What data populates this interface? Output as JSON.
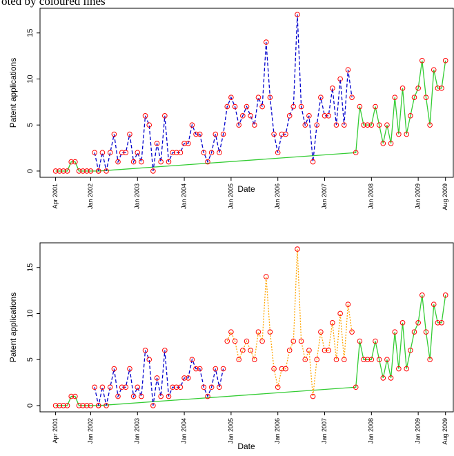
{
  "caption": "oted by coloured lines",
  "chart_data": [
    {
      "type": "line",
      "xlabel": "Date",
      "ylabel": "Patent applications",
      "xlim": [
        "2000-12",
        "2009-10"
      ],
      "ylim": [
        -0.68,
        17.68
      ],
      "yticks": [
        0,
        5,
        10,
        15
      ],
      "xticks": [
        {
          "value": "2001-04",
          "label": "Apr 2001"
        },
        {
          "value": "2002-01",
          "label": "Jan 2002"
        },
        {
          "value": "2003-01",
          "label": "Jan 2003"
        },
        {
          "value": "2004-01",
          "label": "Jan 2004"
        },
        {
          "value": "2005-01",
          "label": "Jan 2005"
        },
        {
          "value": "2006-01",
          "label": "Jan 2006"
        },
        {
          "value": "2007-01",
          "label": "Jan 2007"
        },
        {
          "value": "2008-01",
          "label": "Jan 2008"
        },
        {
          "value": "2009-01",
          "label": "Jan 2009"
        },
        {
          "value": "2009-08",
          "label": "Aug 2009"
        }
      ],
      "point_color": "#ff0000",
      "series": [
        {
          "color": "#33cc33",
          "style": "solid",
          "x": [
            "2001-04",
            "2001-05",
            "2001-06",
            "2001-07",
            "2001-08",
            "2001-09",
            "2001-10",
            "2001-11",
            "2001-12",
            "2002-01",
            "2002-03",
            "2007-09",
            "2007-10",
            "2007-11",
            "2007-12",
            "2008-01",
            "2008-02",
            "2008-03",
            "2008-04",
            "2008-05",
            "2008-06",
            "2008-07",
            "2008-08",
            "2008-09",
            "2008-10",
            "2008-11",
            "2008-12",
            "2009-01",
            "2009-02",
            "2009-03",
            "2009-04",
            "2009-05",
            "2009-06",
            "2009-07",
            "2009-08"
          ],
          "values": [
            0,
            0,
            0,
            0,
            1,
            1,
            0,
            0,
            0,
            0,
            0,
            2,
            7,
            5,
            5,
            5,
            7,
            5,
            3,
            5,
            3,
            8,
            4,
            9,
            4,
            6,
            8,
            9,
            12,
            8,
            5,
            11,
            9,
            9,
            12
          ]
        },
        {
          "color": "#0000cc",
          "style": "dashed",
          "x": [
            "2002-02",
            "2002-03",
            "2002-04",
            "2002-05",
            "2002-06",
            "2002-07",
            "2002-08",
            "2002-09",
            "2002-10",
            "2002-11",
            "2002-12",
            "2003-01",
            "2003-02",
            "2003-03",
            "2003-04",
            "2003-05",
            "2003-06",
            "2003-07",
            "2003-08",
            "2003-09",
            "2003-10",
            "2003-11",
            "2003-12",
            "2004-01",
            "2004-02",
            "2004-03",
            "2004-04",
            "2004-05",
            "2004-06",
            "2004-07",
            "2004-08",
            "2004-09",
            "2004-10",
            "2004-11",
            "2004-12",
            "2005-01",
            "2005-02",
            "2005-03",
            "2005-04",
            "2005-05",
            "2005-06",
            "2005-07",
            "2005-08",
            "2005-09",
            "2005-10",
            "2005-11",
            "2005-12",
            "2006-01",
            "2006-02",
            "2006-03",
            "2006-04",
            "2006-05",
            "2006-06",
            "2006-07",
            "2006-08",
            "2006-09",
            "2006-10",
            "2006-11",
            "2006-12",
            "2007-01",
            "2007-02",
            "2007-03",
            "2007-04",
            "2007-05",
            "2007-06",
            "2007-07",
            "2007-08"
          ],
          "values": [
            2,
            0,
            2,
            0,
            2,
            4,
            1,
            2,
            2,
            4,
            1,
            2,
            1,
            6,
            5,
            0,
            3,
            1,
            6,
            1,
            2,
            2,
            2,
            3,
            3,
            5,
            4,
            4,
            2,
            1,
            2,
            4,
            2,
            4,
            7,
            8,
            7,
            5,
            6,
            7,
            6,
            5,
            8,
            7,
            14,
            8,
            4,
            2,
            4,
            4,
            6,
            7,
            17,
            7,
            5,
            6,
            1,
            5,
            8,
            6,
            6,
            9,
            5,
            10,
            5,
            11,
            8
          ]
        }
      ]
    },
    {
      "type": "line",
      "xlabel": "Date",
      "ylabel": "Patent applications",
      "xlim": [
        "2000-12",
        "2009-10"
      ],
      "ylim": [
        -0.68,
        17.68
      ],
      "yticks": [
        0,
        5,
        10,
        15
      ],
      "xticks": [
        {
          "value": "2001-04",
          "label": "Apr 2001"
        },
        {
          "value": "2002-01",
          "label": "Jan 2002"
        },
        {
          "value": "2003-01",
          "label": "Jan 2003"
        },
        {
          "value": "2004-01",
          "label": "Jan 2004"
        },
        {
          "value": "2005-01",
          "label": "Jan 2005"
        },
        {
          "value": "2006-01",
          "label": "Jan 2006"
        },
        {
          "value": "2007-01",
          "label": "Jan 2007"
        },
        {
          "value": "2008-01",
          "label": "Jan 2008"
        },
        {
          "value": "2009-01",
          "label": "Jan 2009"
        },
        {
          "value": "2009-08",
          "label": "Aug 2009"
        }
      ],
      "point_color": "#ff0000",
      "series": [
        {
          "color": "#33cc33",
          "style": "solid",
          "x": [
            "2001-04",
            "2001-05",
            "2001-06",
            "2001-07",
            "2001-08",
            "2001-09",
            "2001-10",
            "2001-11",
            "2001-12",
            "2002-01",
            "2002-03",
            "2007-09",
            "2007-10",
            "2007-11",
            "2007-12",
            "2008-01",
            "2008-02",
            "2008-03",
            "2008-04",
            "2008-05",
            "2008-06",
            "2008-07",
            "2008-08",
            "2008-09",
            "2008-10",
            "2008-11",
            "2008-12",
            "2009-01",
            "2009-02",
            "2009-03",
            "2009-04",
            "2009-05",
            "2009-06",
            "2009-07",
            "2009-08"
          ],
          "values": [
            0,
            0,
            0,
            0,
            1,
            1,
            0,
            0,
            0,
            0,
            0,
            2,
            7,
            5,
            5,
            5,
            7,
            5,
            3,
            5,
            3,
            8,
            4,
            9,
            4,
            6,
            8,
            9,
            12,
            8,
            5,
            11,
            9,
            9,
            12
          ]
        },
        {
          "color": "#0000cc",
          "style": "dashed",
          "x": [
            "2002-02",
            "2002-03",
            "2002-04",
            "2002-05",
            "2002-06",
            "2002-07",
            "2002-08",
            "2002-09",
            "2002-10",
            "2002-11",
            "2002-12",
            "2003-01",
            "2003-02",
            "2003-03",
            "2003-04",
            "2003-05",
            "2003-06",
            "2003-07",
            "2003-08",
            "2003-09",
            "2003-10",
            "2003-11",
            "2003-12",
            "2004-01",
            "2004-02",
            "2004-03",
            "2004-04",
            "2004-05",
            "2004-06",
            "2004-07",
            "2004-08",
            "2004-09",
            "2004-10",
            "2004-11"
          ],
          "values": [
            2,
            0,
            2,
            0,
            2,
            4,
            1,
            2,
            2,
            4,
            1,
            2,
            1,
            6,
            5,
            0,
            3,
            1,
            6,
            1,
            2,
            2,
            2,
            3,
            3,
            5,
            4,
            4,
            2,
            1,
            2,
            4,
            2,
            4
          ]
        },
        {
          "color": "#ffa500",
          "style": "dotted",
          "x": [
            "2004-12",
            "2005-01",
            "2005-02",
            "2005-03",
            "2005-04",
            "2005-05",
            "2005-06",
            "2005-07",
            "2005-08",
            "2005-09",
            "2005-10",
            "2005-11",
            "2005-12",
            "2006-01",
            "2006-02",
            "2006-03",
            "2006-04",
            "2006-05",
            "2006-06",
            "2006-07",
            "2006-08",
            "2006-09",
            "2006-10",
            "2006-11",
            "2006-12",
            "2007-01",
            "2007-02",
            "2007-03",
            "2007-04",
            "2007-05",
            "2007-06",
            "2007-07",
            "2007-08"
          ],
          "values": [
            7,
            8,
            7,
            5,
            6,
            7,
            6,
            5,
            8,
            7,
            14,
            8,
            4,
            2,
            4,
            4,
            6,
            7,
            17,
            7,
            5,
            6,
            1,
            5,
            8,
            6,
            6,
            9,
            5,
            10,
            5,
            11,
            8
          ]
        }
      ]
    }
  ]
}
